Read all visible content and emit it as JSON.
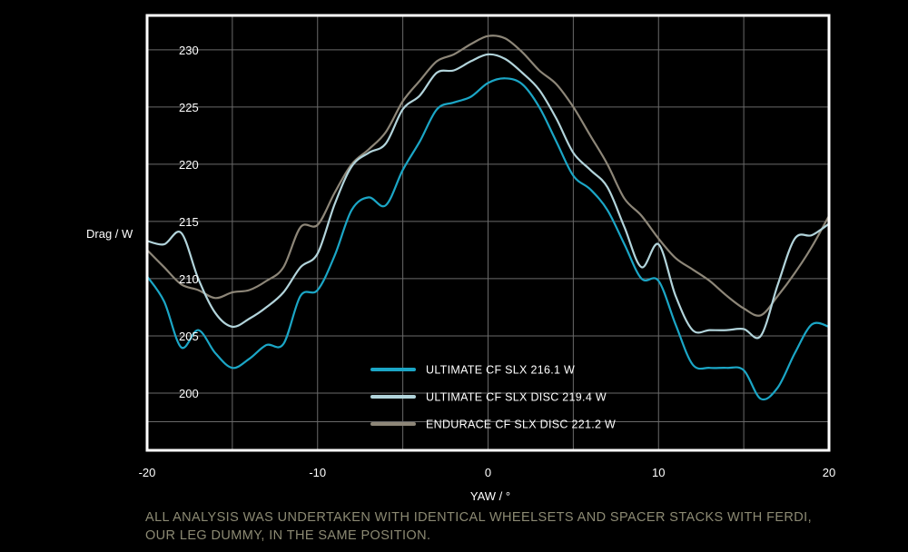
{
  "chart_data": {
    "type": "line",
    "xlabel": "YAW / °",
    "ylabel": "Drag / W",
    "xlim": [
      -20,
      20
    ],
    "ylim": [
      195,
      233
    ],
    "x_ticks": [
      -20,
      -10,
      0,
      10,
      20
    ],
    "y_ticks": [
      200,
      205,
      210,
      215,
      220,
      225,
      230
    ],
    "grid": true,
    "legend_position": "bottom-center",
    "x": [
      -20,
      -19,
      -18,
      -17,
      -16,
      -15,
      -14,
      -13,
      -12,
      -11,
      -10,
      -9,
      -8,
      -7,
      -6,
      -5,
      -4,
      -3,
      -2,
      -1,
      0,
      1,
      2,
      3,
      4,
      5,
      6,
      7,
      8,
      9,
      10,
      11,
      12,
      13,
      14,
      15,
      16,
      17,
      18,
      19,
      20
    ],
    "series": [
      {
        "name": "ULTIMATE CF SLX 216.1 W",
        "color": "#1ba6c6",
        "values": [
          210.2,
          208.0,
          204.0,
          205.5,
          203.5,
          202.2,
          203.0,
          204.2,
          204.3,
          208.5,
          209.0,
          212.0,
          216.0,
          217.1,
          216.4,
          219.5,
          222.0,
          224.8,
          225.4,
          225.9,
          227.1,
          227.5,
          227.0,
          225.0,
          222.0,
          219.0,
          217.8,
          216.0,
          213.0,
          210.0,
          209.8,
          206.0,
          202.5,
          202.2,
          202.2,
          202.0,
          199.5,
          200.5,
          203.5,
          206.0,
          205.8
        ]
      },
      {
        "name": "ULTIMATE CF SLX DISC 219.4 W",
        "color": "#b2d4db",
        "values": [
          213.3,
          213.0,
          214.0,
          210.0,
          207.0,
          205.8,
          206.5,
          207.5,
          208.8,
          211.0,
          212.2,
          216.5,
          219.8,
          221.0,
          221.8,
          224.8,
          226.0,
          228.0,
          228.2,
          229.0,
          229.6,
          229.2,
          228.0,
          226.5,
          224.0,
          221.0,
          219.5,
          218.0,
          214.5,
          211.0,
          213.0,
          208.5,
          205.5,
          205.5,
          205.5,
          205.6,
          205.0,
          209.5,
          213.5,
          213.8,
          214.8
        ]
      },
      {
        "name": "ENDURACE CF SLX DISC 221.2 W",
        "color": "#8d8678",
        "values": [
          212.5,
          211.0,
          209.5,
          209.0,
          208.3,
          208.8,
          209.0,
          209.8,
          211.0,
          214.5,
          214.7,
          217.5,
          220.0,
          221.3,
          222.8,
          225.5,
          227.3,
          229.0,
          229.6,
          230.5,
          231.2,
          231.0,
          229.8,
          228.2,
          227.0,
          225.0,
          222.5,
          220.0,
          217.0,
          215.5,
          213.5,
          211.8,
          210.8,
          209.8,
          208.5,
          207.4,
          206.8,
          208.5,
          210.5,
          212.8,
          215.5
        ]
      }
    ]
  },
  "footnote": {
    "line1": "ALL ANALYSIS WAS UNDERTAKEN WITH IDENTICAL WHEELSETS AND SPACER STACKS WITH FERDI,",
    "line2": "OUR LEG DUMMY, IN THE SAME POSITION."
  }
}
